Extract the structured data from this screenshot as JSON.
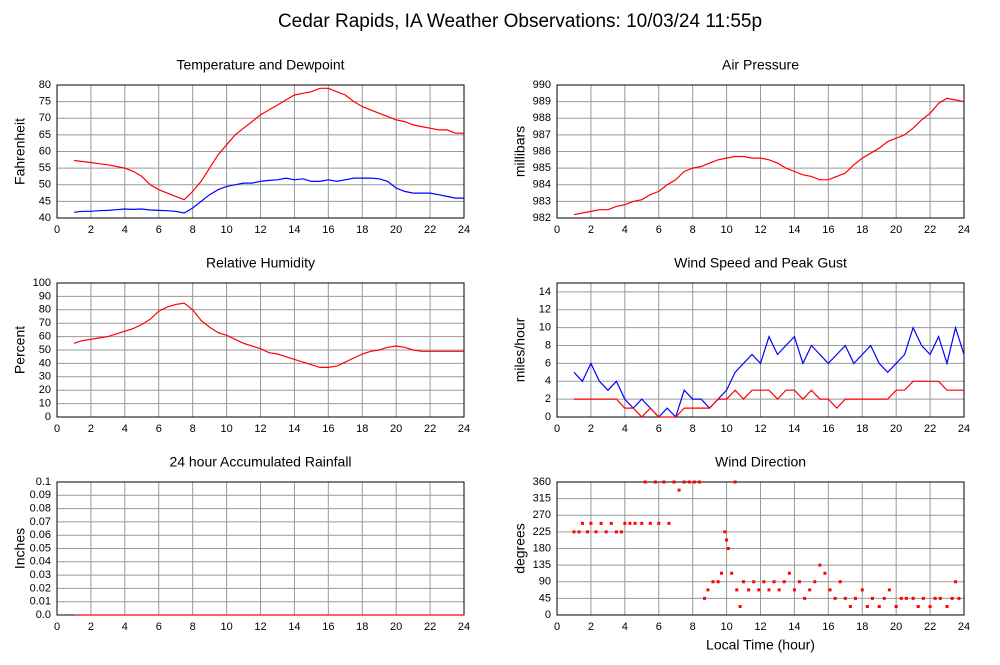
{
  "title": "Cedar Rapids, IA Weather Observations: 10/03/24 11:55p",
  "chart_data": [
    {
      "type": "line",
      "title": "Temperature and Dewpoint",
      "ylabel": "Fahrenheit",
      "grid": true,
      "xlim": [
        0,
        24
      ],
      "xticks": [
        0,
        2,
        4,
        6,
        8,
        10,
        12,
        14,
        16,
        18,
        20,
        22,
        24
      ],
      "ylim": [
        40,
        80
      ],
      "yticks": [
        40,
        45,
        50,
        55,
        60,
        65,
        70,
        75,
        80
      ],
      "x": [
        1,
        1.5,
        2,
        2.5,
        3,
        3.5,
        4,
        4.5,
        5,
        5.5,
        6,
        6.5,
        7,
        7.5,
        8,
        8.5,
        9,
        9.5,
        10,
        10.5,
        11,
        11.5,
        12,
        12.5,
        13,
        13.5,
        14,
        14.5,
        15,
        15.5,
        16,
        16.5,
        17,
        17.5,
        18,
        18.5,
        19,
        19.5,
        20,
        20.5,
        21,
        21.5,
        22,
        22.5,
        23,
        23.5,
        24
      ],
      "series": [
        {
          "color": "#ff0000",
          "values": [
            57.3,
            57,
            56.7,
            56.3,
            56,
            55.5,
            55,
            54,
            52.5,
            50,
            48.5,
            47.5,
            46.5,
            45.5,
            48,
            51,
            55,
            59,
            62,
            65,
            67,
            69,
            71,
            72.5,
            74,
            75.5,
            77,
            77.5,
            78,
            79,
            79,
            78,
            77,
            75,
            73.5,
            72.5,
            71.5,
            70.5,
            69.5,
            69,
            68,
            67.5,
            67,
            66.5,
            66.5,
            65.5,
            65.5
          ]
        },
        {
          "color": "#0000ff",
          "values": [
            41.7,
            42,
            42,
            42.2,
            42.3,
            42.5,
            42.7,
            42.6,
            42.7,
            42.4,
            42.3,
            42.2,
            42,
            41.5,
            43,
            45,
            47,
            48.5,
            49.5,
            50,
            50.5,
            50.5,
            51,
            51.3,
            51.5,
            52,
            51.5,
            51.8,
            51,
            51,
            51.5,
            51,
            51.5,
            52,
            52,
            52,
            51.8,
            51,
            49,
            48,
            47.5,
            47.5,
            47.5,
            47,
            46.5,
            46,
            46
          ]
        }
      ]
    },
    {
      "type": "line",
      "title": "Air Pressure",
      "ylabel": "millibars",
      "grid": true,
      "xlim": [
        0,
        24
      ],
      "xticks": [
        0,
        2,
        4,
        6,
        8,
        10,
        12,
        14,
        16,
        18,
        20,
        22,
        24
      ],
      "ylim": [
        982,
        990
      ],
      "yticks": [
        982,
        983,
        984,
        985,
        986,
        987,
        988,
        989,
        990
      ],
      "x": [
        1,
        1.5,
        2,
        2.5,
        3,
        3.5,
        4,
        4.5,
        5,
        5.5,
        6,
        6.5,
        7,
        7.5,
        8,
        8.5,
        9,
        9.5,
        10,
        10.5,
        11,
        11.5,
        12,
        12.5,
        13,
        13.5,
        14,
        14.5,
        15,
        15.5,
        16,
        16.5,
        17,
        17.5,
        18,
        18.5,
        19,
        19.5,
        20,
        20.5,
        21,
        21.5,
        22,
        22.5,
        23,
        23.5,
        24
      ],
      "series": [
        {
          "color": "#ff0000",
          "values": [
            982.2,
            982.3,
            982.4,
            982.5,
            982.5,
            982.7,
            982.8,
            983,
            983.1,
            983.4,
            983.6,
            984,
            984.3,
            984.8,
            985,
            985.1,
            985.3,
            985.5,
            985.6,
            985.7,
            985.7,
            985.6,
            985.6,
            985.5,
            985.3,
            985,
            984.8,
            984.6,
            984.5,
            984.3,
            984.3,
            984.5,
            984.7,
            985.2,
            985.6,
            985.9,
            986.2,
            986.6,
            986.8,
            987,
            987.4,
            987.9,
            988.3,
            988.9,
            989.2,
            989.1,
            989
          ]
        }
      ]
    },
    {
      "type": "line",
      "title": "Relative Humidity",
      "ylabel": "Percent",
      "grid": true,
      "xlim": [
        0,
        24
      ],
      "xticks": [
        0,
        2,
        4,
        6,
        8,
        10,
        12,
        14,
        16,
        18,
        20,
        22,
        24
      ],
      "ylim": [
        0,
        100
      ],
      "yticks": [
        0,
        10,
        20,
        30,
        40,
        50,
        60,
        70,
        80,
        90,
        100
      ],
      "x": [
        1,
        1.5,
        2,
        2.5,
        3,
        3.5,
        4,
        4.5,
        5,
        5.5,
        6,
        6.5,
        7,
        7.5,
        8,
        8.5,
        9,
        9.5,
        10,
        10.5,
        11,
        11.5,
        12,
        12.5,
        13,
        13.5,
        14,
        14.5,
        15,
        15.5,
        16,
        16.5,
        17,
        17.5,
        18,
        18.5,
        19,
        19.5,
        20,
        20.5,
        21,
        21.5,
        22,
        22.5,
        23,
        23.5,
        24
      ],
      "series": [
        {
          "color": "#ff0000",
          "values": [
            55,
            57,
            58,
            59,
            60,
            62,
            64,
            66,
            69,
            73,
            79,
            82,
            84,
            85,
            80,
            72,
            67,
            63,
            61,
            58,
            55,
            53,
            51,
            48,
            47,
            45,
            43,
            41,
            39,
            37,
            37,
            38,
            41,
            44,
            47,
            49,
            50,
            52,
            53,
            52,
            50,
            49,
            49,
            49,
            49,
            49,
            49
          ]
        }
      ]
    },
    {
      "type": "line",
      "title": "Wind Speed and Peak Gust",
      "ylabel": "miles/hour",
      "grid": true,
      "xlim": [
        0,
        24
      ],
      "xticks": [
        0,
        2,
        4,
        6,
        8,
        10,
        12,
        14,
        16,
        18,
        20,
        22,
        24
      ],
      "ylim": [
        0,
        15
      ],
      "yticks": [
        0,
        2,
        4,
        6,
        8,
        10,
        12,
        14
      ],
      "x": [
        1,
        1.5,
        2,
        2.5,
        3,
        3.5,
        4,
        4.5,
        5,
        5.5,
        6,
        6.5,
        7,
        7.5,
        8,
        8.5,
        9,
        9.5,
        10,
        10.5,
        11,
        11.5,
        12,
        12.5,
        13,
        13.5,
        14,
        14.5,
        15,
        15.5,
        16,
        16.5,
        17,
        17.5,
        18,
        18.5,
        19,
        19.5,
        20,
        20.5,
        21,
        21.5,
        22,
        22.5,
        23,
        23.5,
        24
      ],
      "series": [
        {
          "color": "#0000ff",
          "values": [
            5,
            4,
            6,
            4,
            3,
            4,
            2,
            1,
            2,
            1,
            0,
            1,
            0,
            3,
            2,
            2,
            1,
            2,
            3,
            5,
            6,
            7,
            6,
            9,
            7,
            8,
            9,
            6,
            8,
            7,
            6,
            7,
            8,
            6,
            7,
            8,
            6,
            5,
            6,
            7,
            10,
            8,
            7,
            9,
            6,
            10,
            7
          ]
        },
        {
          "color": "#ff0000",
          "values": [
            2,
            2,
            2,
            2,
            2,
            2,
            1,
            1,
            0,
            1,
            0,
            0,
            0,
            1,
            1,
            1,
            1,
            2,
            2,
            3,
            2,
            3,
            3,
            3,
            2,
            3,
            3,
            2,
            3,
            2,
            2,
            1,
            2,
            2,
            2,
            2,
            2,
            2,
            3,
            3,
            4,
            4,
            4,
            4,
            3,
            3,
            3
          ]
        }
      ]
    },
    {
      "type": "line",
      "title": "24 hour Accumulated Rainfall",
      "ylabel": "Inches",
      "grid": true,
      "xlim": [
        0,
        24
      ],
      "xticks": [
        0,
        2,
        4,
        6,
        8,
        10,
        12,
        14,
        16,
        18,
        20,
        22,
        24
      ],
      "ylim": [
        0,
        0.1
      ],
      "yticks": [
        {
          "value": 0,
          "label": "0.0"
        },
        0.01,
        0.02,
        0.03,
        0.04,
        0.05,
        0.06,
        0.07,
        0.08,
        0.09,
        0.1
      ],
      "x": [
        1,
        24
      ],
      "series": [
        {
          "color": "#ff0000",
          "values": [
            0,
            0
          ]
        }
      ]
    },
    {
      "type": "scatter",
      "title": "Wind Direction",
      "ylabel": "degrees",
      "xlabel": "Local Time (hour)",
      "grid": true,
      "xlim": [
        0,
        24
      ],
      "xticks": [
        0,
        2,
        4,
        6,
        8,
        10,
        12,
        14,
        16,
        18,
        20,
        22,
        24
      ],
      "ylim": [
        0,
        360
      ],
      "yticks": [
        0,
        45,
        90,
        135,
        180,
        225,
        270,
        315,
        360
      ],
      "x": [
        1.0,
        1.3,
        1.5,
        1.8,
        2.0,
        2.3,
        2.6,
        2.9,
        3.2,
        3.5,
        3.8,
        4.0,
        4.3,
        4.6,
        5.0,
        5.2,
        5.5,
        5.8,
        6.0,
        6.3,
        6.6,
        6.9,
        7.2,
        7.5,
        7.8,
        8.1,
        8.4,
        8.7,
        8.9,
        9.2,
        9.5,
        9.7,
        9.9,
        10.0,
        10.1,
        10.3,
        10.5,
        10.6,
        10.8,
        11.0,
        11.3,
        11.6,
        11.9,
        12.2,
        12.5,
        12.8,
        13.1,
        13.4,
        13.7,
        14.0,
        14.3,
        14.6,
        14.9,
        15.2,
        15.5,
        15.8,
        16.1,
        16.4,
        16.7,
        17.0,
        17.3,
        17.6,
        18.0,
        18.3,
        18.6,
        19.0,
        19.3,
        19.6,
        20.0,
        20.3,
        20.6,
        21.0,
        21.3,
        21.6,
        22.0,
        22.3,
        22.6,
        23.0,
        23.3,
        23.5,
        23.7
      ],
      "series": [
        {
          "color": "#ff0000",
          "values": [
            225,
            225,
            248,
            225,
            248,
            225,
            248,
            225,
            248,
            225,
            225,
            248,
            248,
            248,
            248,
            360,
            248,
            360,
            248,
            360,
            248,
            360,
            338,
            360,
            360,
            360,
            360,
            45,
            68,
            90,
            90,
            113,
            225,
            203,
            180,
            113,
            360,
            68,
            23,
            90,
            68,
            90,
            68,
            90,
            68,
            90,
            68,
            90,
            113,
            68,
            90,
            45,
            68,
            90,
            135,
            113,
            68,
            45,
            90,
            45,
            23,
            45,
            68,
            23,
            45,
            23,
            45,
            68,
            23,
            45,
            45,
            45,
            23,
            45,
            23,
            45,
            45,
            23,
            45,
            90,
            45
          ]
        }
      ]
    }
  ]
}
